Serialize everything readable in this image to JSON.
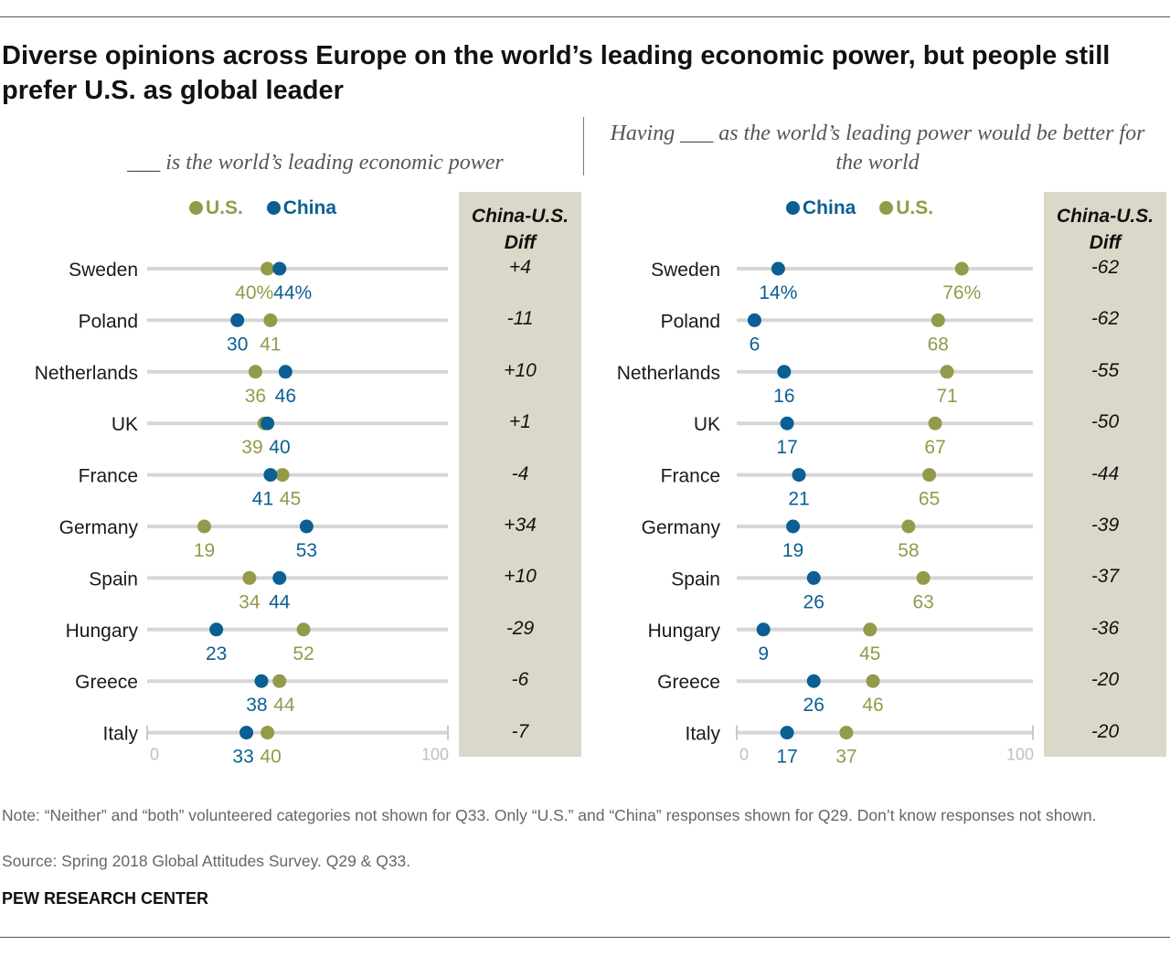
{
  "title": "Diverse opinions across Europe on the world’s leading economic power, but people still prefer U.S. as global leader",
  "colors": {
    "us": "#949a4a",
    "china": "#0b5f92",
    "track": "#d6d6d6",
    "diff_bg": "#dcd8c9"
  },
  "chart_data": [
    {
      "type": "dot",
      "title": "___ is the world’s leading economic power",
      "legend": [
        "U.S.",
        "China"
      ],
      "diff_header": "China-U.S. Diff",
      "axis_labels": [
        "0",
        "100"
      ],
      "xlim": [
        0,
        100
      ],
      "categories": [
        "Sweden",
        "Poland",
        "Netherlands",
        "UK",
        "France",
        "Germany",
        "Spain",
        "Hungary",
        "Greece",
        "Italy"
      ],
      "series": [
        {
          "name": "U.S.",
          "values": [
            40,
            41,
            36,
            39,
            45,
            19,
            34,
            52,
            44,
            40
          ],
          "labels": [
            "40%",
            "41",
            "36",
            "39",
            "45",
            "19",
            "34",
            "52",
            "44",
            "40"
          ]
        },
        {
          "name": "China",
          "values": [
            44,
            30,
            46,
            40,
            41,
            53,
            44,
            23,
            38,
            33
          ],
          "labels": [
            "44%",
            "30",
            "46",
            "40",
            "41",
            "53",
            "44",
            "23",
            "38",
            "33"
          ]
        }
      ],
      "diff": [
        "+4",
        "-11",
        "+10",
        "+1",
        "-4",
        "+34",
        "+10",
        "-29",
        "-6",
        "-7"
      ]
    },
    {
      "type": "dot",
      "title": "Having ___ as the world’s leading power would be better for the world",
      "legend": [
        "China",
        "U.S."
      ],
      "diff_header": "China-U.S. Diff",
      "axis_labels": [
        "0",
        "100"
      ],
      "xlim": [
        0,
        100
      ],
      "categories": [
        "Sweden",
        "Poland",
        "Netherlands",
        "UK",
        "France",
        "Germany",
        "Spain",
        "Hungary",
        "Greece",
        "Italy"
      ],
      "series": [
        {
          "name": "China",
          "values": [
            14,
            6,
            16,
            17,
            21,
            19,
            26,
            9,
            26,
            17
          ],
          "labels": [
            "14%",
            "6",
            "16",
            "17",
            "21",
            "19",
            "26",
            "9",
            "26",
            "17"
          ]
        },
        {
          "name": "U.S.",
          "values": [
            76,
            68,
            71,
            67,
            65,
            58,
            63,
            45,
            46,
            37
          ],
          "labels": [
            "76%",
            "68",
            "71",
            "67",
            "65",
            "58",
            "63",
            "45",
            "46",
            "37"
          ]
        }
      ],
      "diff": [
        "-62",
        "-62",
        "-55",
        "-50",
        "-44",
        "-39",
        "-37",
        "-36",
        "-20",
        "-20"
      ]
    }
  ],
  "note": "Note: “Neither” and “both” volunteered categories not shown for Q33. Only “U.S.” and “China” responses shown for Q29. Don’t know responses not shown.",
  "source": "Source: Spring 2018 Global Attitudes Survey. Q29 & Q33.",
  "brand": "PEW RESEARCH CENTER"
}
